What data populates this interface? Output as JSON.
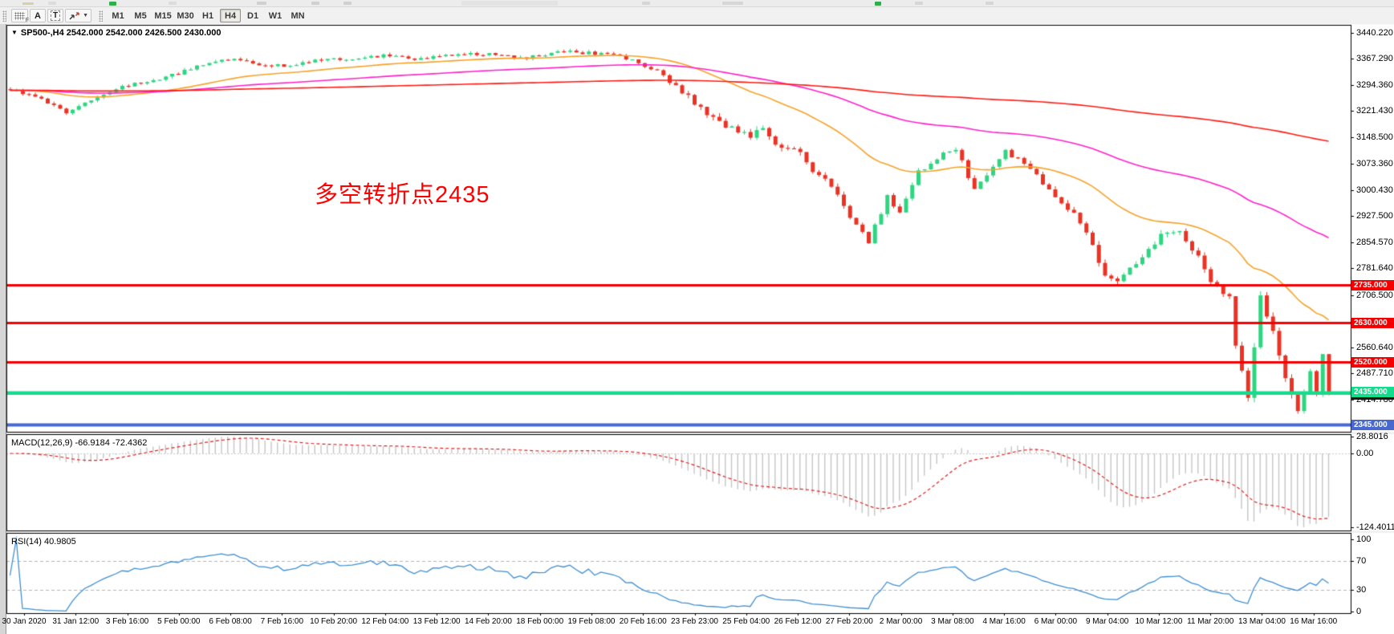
{
  "toolbar": {
    "font_tool_label": "A",
    "text_tool_label": "T",
    "timeframes": [
      "M1",
      "M5",
      "M15",
      "M30",
      "H1",
      "H4",
      "D1",
      "W1",
      "MN"
    ],
    "active_timeframe": "H4"
  },
  "chart_data": {
    "type": "candlestick",
    "symbol": "SP500-",
    "timeframe": "H4",
    "title": "SP500-,H4  2542.000 2542.000 2426.500 2430.000",
    "annotation": "多空转折点2435",
    "last_bar_ohlc": {
      "open": 2542.0,
      "high": 2542.0,
      "low": 2426.5,
      "close": 2430.0
    },
    "price_axis": {
      "ticks": [
        {
          "label": "3440.220",
          "price": 3440.22
        },
        {
          "label": "3367.290",
          "price": 3367.29
        },
        {
          "label": "3294.360",
          "price": 3294.36
        },
        {
          "label": "3221.430",
          "price": 3221.43
        },
        {
          "label": "3148.500",
          "price": 3148.5
        },
        {
          "label": "3073.360",
          "price": 3073.36
        },
        {
          "label": "3000.430",
          "price": 3000.43
        },
        {
          "label": "2927.500",
          "price": 2927.5
        },
        {
          "label": "2854.570",
          "price": 2854.57
        },
        {
          "label": "2781.640",
          "price": 2781.64
        },
        {
          "label": "2706.500",
          "price": 2706.5
        },
        {
          "label": "2560.640",
          "price": 2560.64
        },
        {
          "label": "2487.710",
          "price": 2487.71
        },
        {
          "label": "2414.780",
          "price": 2414.78
        }
      ]
    },
    "levels": [
      {
        "price": 2735.0,
        "label": "2735.000",
        "color": "#f50000",
        "width": 3
      },
      {
        "price": 2630.0,
        "label": "2630.000",
        "color": "#f50000",
        "width": 3
      },
      {
        "price": 2520.0,
        "label": "2520.000",
        "color": "#f50000",
        "width": 3
      },
      {
        "price": 2430.0,
        "label": "2430.000",
        "color": "#9a9a9a",
        "tag_color": "#141414",
        "width": 1,
        "is_bid_line": true
      },
      {
        "price": 2435.0,
        "label": "2435.000",
        "color": "#12dd8d",
        "width": 4
      },
      {
        "price": 2345.0,
        "label": "2345.000",
        "color": "#4868cf",
        "width": 4
      }
    ],
    "time_axis": [
      "30 Jan 2020",
      "31 Jan 12:00",
      "3 Feb 16:00",
      "5 Feb 00:00",
      "6 Feb 08:00",
      "7 Feb 16:00",
      "10 Feb 20:00",
      "12 Feb 04:00",
      "13 Feb 12:00",
      "14 Feb 20:00",
      "18 Feb 00:00",
      "19 Feb 08:00",
      "20 Feb 16:00",
      "23 Feb 23:00",
      "25 Feb 04:00",
      "26 Feb 12:00",
      "27 Feb 20:00",
      "2 Mar 00:00",
      "3 Mar 08:00",
      "4 Mar 16:00",
      "6 Mar 00:00",
      "9 Mar 04:00",
      "10 Mar 12:00",
      "11 Mar 20:00",
      "13 Mar 04:00",
      "16 Mar 16:00"
    ],
    "macd": {
      "label": "MACD(12,26,9) -66.9184 -72.4362",
      "params": "12,26,9",
      "value": -66.9184,
      "signal_value": -72.4362,
      "axis_labels": [
        {
          "label": "28.8016",
          "value": 28.8016
        },
        {
          "label": "0.00",
          "value": 0.0
        },
        {
          "label": "-124.4011",
          "value": -124.4011
        }
      ]
    },
    "rsi": {
      "label": "RSI(14) 40.9805",
      "period": 14,
      "value": 40.9805,
      "axis_labels": [
        {
          "label": "100",
          "value": 100
        },
        {
          "label": "70",
          "value": 70
        },
        {
          "label": "30",
          "value": 30
        },
        {
          "label": "0",
          "value": 0
        }
      ],
      "level_lines": [
        70,
        30
      ]
    },
    "moving_averages": [
      {
        "type": "ema",
        "period": 34,
        "color": "#f7a329"
      },
      {
        "type": "ema",
        "period": 100,
        "color": "#ff22cc"
      },
      {
        "type": "ema",
        "period": 400,
        "color": "#ff1c14"
      }
    ],
    "colors": {
      "up": "#2fd581",
      "down": "#e93325",
      "histogram": "#c6c6c6",
      "macd_signal": "#e02020",
      "rsi_line": "#3f8fd2",
      "level_dash": "#b5b5b5"
    },
    "synthesis": {
      "bars": 213,
      "seed": 20200316,
      "close_path": [
        [
          0,
          3283
        ],
        [
          5,
          3255
        ],
        [
          9,
          3218
        ],
        [
          13,
          3252
        ],
        [
          19,
          3295
        ],
        [
          24,
          3310
        ],
        [
          30,
          3345
        ],
        [
          36,
          3370
        ],
        [
          40,
          3352
        ],
        [
          44,
          3348
        ],
        [
          48,
          3360
        ],
        [
          52,
          3365
        ],
        [
          57,
          3372
        ],
        [
          61,
          3378
        ],
        [
          65,
          3368
        ],
        [
          69,
          3374
        ],
        [
          73,
          3380
        ],
        [
          77,
          3382
        ],
        [
          81,
          3370
        ],
        [
          85,
          3374
        ],
        [
          88,
          3388
        ],
        [
          92,
          3385
        ],
        [
          96,
          3380
        ],
        [
          100,
          3366
        ],
        [
          103,
          3342
        ],
        [
          106,
          3306
        ],
        [
          108,
          3272
        ],
        [
          110,
          3244
        ],
        [
          113,
          3198
        ],
        [
          116,
          3170
        ],
        [
          119,
          3152
        ],
        [
          121,
          3180
        ],
        [
          123,
          3130
        ],
        [
          127,
          3108
        ],
        [
          129,
          3060
        ],
        [
          131,
          3028
        ],
        [
          133,
          2980
        ],
        [
          135,
          2930
        ],
        [
          138,
          2858
        ],
        [
          141,
          2980
        ],
        [
          143,
          2942
        ],
        [
          146,
          3052
        ],
        [
          149,
          3092
        ],
        [
          152,
          3118
        ],
        [
          154,
          3040
        ],
        [
          155,
          3008
        ],
        [
          158,
          3062
        ],
        [
          160,
          3108
        ],
        [
          164,
          3062
        ],
        [
          168,
          2974
        ],
        [
          171,
          2942
        ],
        [
          174,
          2842
        ],
        [
          176,
          2762
        ],
        [
          178,
          2746
        ],
        [
          181,
          2802
        ],
        [
          185,
          2870
        ],
        [
          188,
          2882
        ],
        [
          191,
          2812
        ],
        [
          193,
          2750
        ],
        [
          196,
          2702
        ],
        [
          197,
          2562
        ],
        [
          199,
          2422
        ],
        [
          200,
          2562
        ],
        [
          201,
          2698
        ],
        [
          203,
          2602
        ],
        [
          205,
          2482
        ],
        [
          207,
          2384
        ],
        [
          209,
          2498
        ],
        [
          210,
          2430
        ],
        [
          211,
          2542
        ],
        [
          212,
          2430
        ]
      ],
      "volatility": [
        [
          0,
          9
        ],
        [
          100,
          12
        ],
        [
          108,
          18
        ],
        [
          131,
          16
        ],
        [
          143,
          14
        ],
        [
          168,
          18
        ],
        [
          193,
          22
        ],
        [
          209,
          14
        ]
      ]
    }
  }
}
